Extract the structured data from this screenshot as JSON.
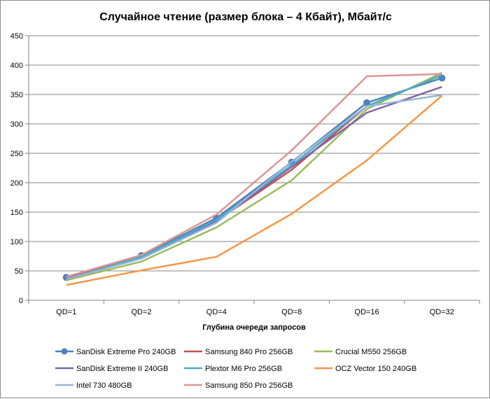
{
  "chart_data": {
    "type": "line",
    "title": "Случайное чтение (размер блока – 4 Кбайт), Мбайт/с",
    "xlabel": "Глубина очереди запросов",
    "ylabel": "",
    "categories": [
      "QD=1",
      "QD=2",
      "QD=4",
      "QD=8",
      "QD=16",
      "QD=32"
    ],
    "ylim": [
      0,
      450
    ],
    "yticks": [
      0,
      50,
      100,
      150,
      200,
      250,
      300,
      350,
      400,
      450
    ],
    "grid": true,
    "legend_position": "bottom",
    "series": [
      {
        "name": "SanDisk Extreme Pro 240GB",
        "color": "#4f81bd",
        "markers": true,
        "values": [
          39,
          76,
          140,
          235,
          336,
          378
        ]
      },
      {
        "name": "Samsung 840 Pro 256GB",
        "color": "#c0504d",
        "markers": false,
        "values": [
          37,
          74,
          135,
          222,
          330,
          383
        ]
      },
      {
        "name": "Crucial M550 256GB",
        "color": "#9bbb59",
        "markers": false,
        "values": [
          34,
          66,
          124,
          204,
          325,
          387
        ]
      },
      {
        "name": "SanDisk Extreme II 240GB",
        "color": "#8064a2",
        "markers": false,
        "values": [
          36,
          73,
          135,
          227,
          319,
          363
        ]
      },
      {
        "name": "Plextor M6 Pro 256GB",
        "color": "#4bacc6",
        "markers": false,
        "values": [
          36,
          74,
          137,
          230,
          330,
          383
        ]
      },
      {
        "name": "OCZ Vector 150 240GB",
        "color": "#f79646",
        "markers": false,
        "values": [
          26,
          51,
          74,
          147,
          238,
          348
        ]
      },
      {
        "name": "Intel 730 480GB",
        "color": "#95b3d7",
        "markers": false,
        "values": [
          36,
          71,
          132,
          236,
          330,
          349
        ]
      },
      {
        "name": "Samsung 850 Pro 256GB",
        "color": "#d99694",
        "markers": false,
        "values": [
          40,
          77,
          146,
          255,
          381,
          385
        ]
      }
    ]
  }
}
